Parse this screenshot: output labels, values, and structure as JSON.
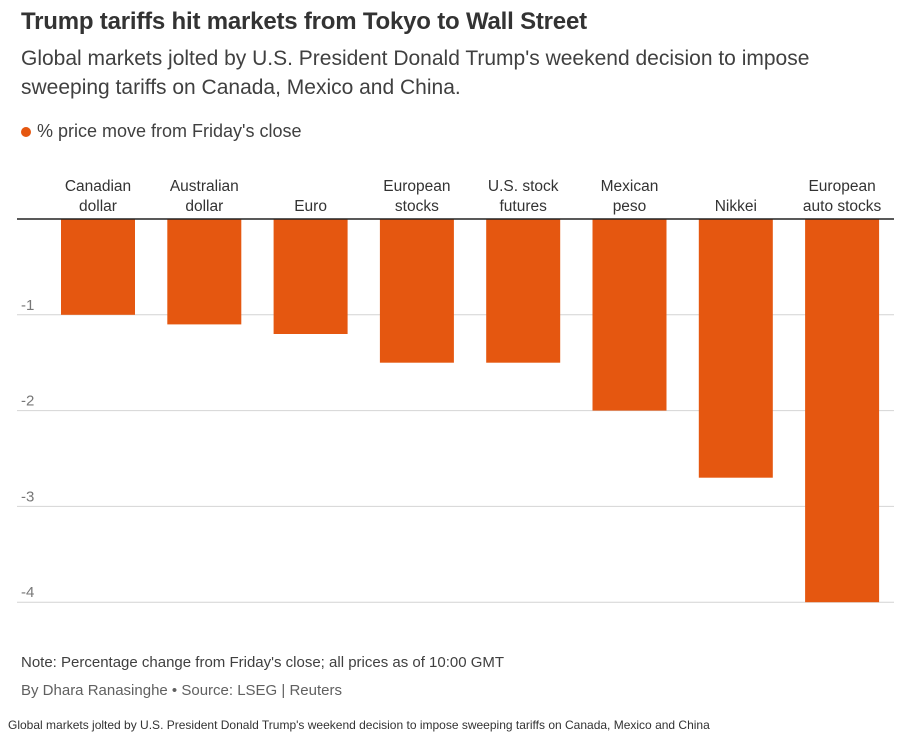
{
  "header": {
    "title": "Trump tariffs hit markets from Tokyo to Wall Street",
    "subtitle": "Global markets jolted by U.S. President Donald Trump's weekend decision to impose sweeping tariffs on Canada, Mexico and China."
  },
  "legend": {
    "label": "% price move from Friday's close",
    "color": "#e55710"
  },
  "chart_data": {
    "type": "bar",
    "categories": [
      [
        "Canadian",
        "dollar"
      ],
      [
        "Australian",
        "dollar"
      ],
      [
        "Euro"
      ],
      [
        "European",
        "stocks"
      ],
      [
        "U.S. stock",
        "futures"
      ],
      [
        "Mexican",
        "peso"
      ],
      [
        "Nikkei"
      ],
      [
        "European",
        "auto stocks"
      ]
    ],
    "series": [
      {
        "name": "% price move from Friday's close",
        "values": [
          -1.0,
          -1.1,
          -1.2,
          -1.5,
          -1.5,
          -2.0,
          -2.7,
          -4.0
        ]
      }
    ],
    "ylim": [
      -4,
      0
    ],
    "yticks": [
      -1,
      -2,
      -3,
      -4
    ],
    "grid": true,
    "legend_position": "top-left",
    "bar_color": "#e55710",
    "grid_color": "#d4d4d4",
    "axis_color": "#222222"
  },
  "footer": {
    "note": "Note: Percentage change from Friday's close; all prices as of 10:00 GMT",
    "credit": "By Dhara Ranasinghe • Source: LSEG | Reuters",
    "caption": "Global markets jolted by U.S. President Donald Trump's weekend decision to impose sweeping tariffs on Canada, Mexico and China"
  }
}
